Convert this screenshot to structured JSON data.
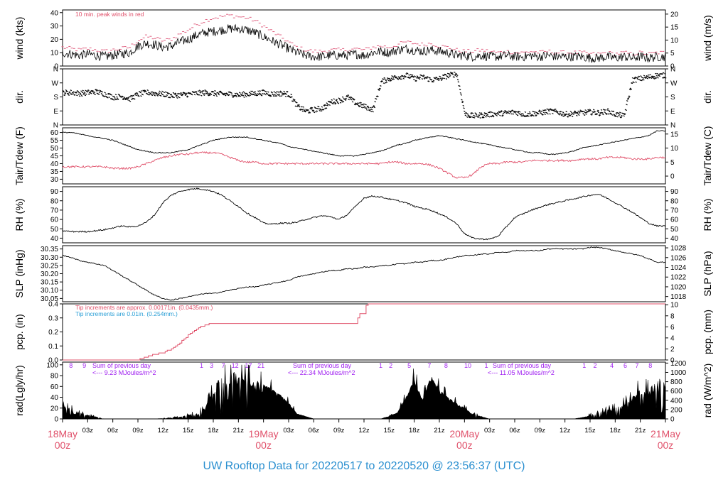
{
  "footer_title": "UW Rooftop Data for 20220517  to  20220520 @ 23:56:37  (UTC)",
  "colors": {
    "black": "#000000",
    "red": "#e0506a",
    "blue": "#2a9fd6",
    "purple": "#a020f0",
    "pink": "#e06080"
  },
  "x_axis": {
    "hour_ticks": [
      "03z",
      "06z",
      "09z",
      "12z",
      "15z",
      "18z",
      "21z",
      "03z",
      "06z",
      "09z",
      "12z",
      "15z",
      "18z",
      "21z",
      "03z",
      "06z",
      "09z",
      "12z",
      "15z",
      "18z",
      "21z"
    ],
    "day_labels": [
      {
        "day": "18May",
        "hour": "00z"
      },
      {
        "day": "19May",
        "hour": "00z"
      },
      {
        "day": "20May",
        "hour": "00z"
      },
      {
        "day": "21May",
        "hour": "00z"
      }
    ]
  },
  "chart_data": [
    {
      "type": "line",
      "panel": "wind",
      "ylabel": "wind (kts)",
      "ylabel_right": "wind (m/s)",
      "ylim": [
        0,
        42
      ],
      "yticks": [
        0,
        10,
        20,
        30,
        40
      ],
      "yticks_right": [
        0,
        5,
        10,
        15,
        20
      ],
      "annotation": "10 min. peak winds in red",
      "series": [
        {
          "values_hourly": [
            10,
            9,
            8,
            9,
            8,
            7,
            8,
            9,
            10,
            15,
            17,
            16,
            14,
            15,
            18,
            20,
            23,
            25,
            26,
            27,
            28,
            28,
            27,
            25,
            22,
            19,
            16,
            13,
            10,
            8,
            7,
            7,
            8,
            8,
            8,
            9,
            8,
            10,
            11,
            10,
            12,
            13,
            12,
            11,
            12,
            11,
            10,
            8,
            8,
            7,
            8,
            7,
            7,
            8,
            7,
            7,
            8,
            7,
            8,
            7,
            7,
            7,
            7,
            6,
            6,
            7,
            6,
            7,
            6,
            7,
            6,
            7
          ]
        },
        {
          "values_hourly": [
            14,
            13,
            12,
            13,
            12,
            11,
            12,
            13,
            14,
            19,
            22,
            21,
            19,
            20,
            24,
            27,
            31,
            34,
            36,
            37,
            38,
            37,
            36,
            34,
            30,
            26,
            22,
            18,
            14,
            12,
            11,
            11,
            12,
            12,
            12,
            13,
            12,
            14,
            15,
            14,
            16,
            18,
            17,
            16,
            17,
            15,
            14,
            12,
            11,
            11,
            12,
            11,
            10,
            11,
            10,
            10,
            11,
            10,
            11,
            10,
            10,
            10,
            10,
            9,
            9,
            10,
            9,
            10,
            9,
            10,
            9,
            10
          ]
        }
      ]
    },
    {
      "type": "scatter",
      "panel": "dir",
      "ylabel": "dir.",
      "ylabel_right": "dir.",
      "ytick_labels": [
        "N",
        "E",
        "S",
        "W",
        "N"
      ],
      "y_degrees_hourly": [
        210,
        210,
        205,
        210,
        215,
        200,
        180,
        185,
        170,
        200,
        210,
        205,
        200,
        190,
        195,
        200,
        205,
        210,
        205,
        200,
        200,
        195,
        200,
        205,
        210,
        200,
        205,
        200,
        120,
        90,
        100,
        110,
        150,
        160,
        180,
        140,
        120,
        100,
        280,
        300,
        310,
        320,
        300,
        310,
        290,
        300,
        320,
        330,
        70,
        60,
        65,
        70,
        75,
        80,
        85,
        70,
        75,
        80,
        90,
        85,
        70,
        75,
        80,
        85,
        80,
        90,
        70,
        60,
        290,
        300,
        310,
        320
      ]
    },
    {
      "type": "line",
      "panel": "temp",
      "ylabel": "Tair/Tdew (F)",
      "ylabel_right": "Tair/Tdew (C)",
      "ylim": [
        27,
        63
      ],
      "yticks": [
        30,
        35,
        40,
        45,
        50,
        55,
        60
      ],
      "yticks_right": [
        0,
        5,
        10,
        15
      ],
      "series": [
        {
          "name": "",
          "values_hourly": [
            60,
            60,
            59,
            58,
            57,
            56,
            55,
            53,
            51,
            49,
            48,
            47,
            47,
            47,
            48,
            49,
            51,
            53,
            55,
            56,
            57,
            57,
            57,
            56,
            55,
            54,
            53,
            51,
            50,
            49,
            48,
            47,
            46,
            45,
            45,
            45,
            46,
            47,
            48,
            50,
            52,
            53,
            55,
            56,
            57,
            58,
            57,
            56,
            55,
            54,
            53,
            52,
            51,
            50,
            49,
            48,
            47,
            47,
            46,
            46,
            47,
            48,
            50,
            51,
            52,
            53,
            54,
            55,
            56,
            57,
            58,
            61
          ]
        },
        {
          "name": "",
          "values_hourly": [
            38,
            38,
            38,
            38,
            38,
            38,
            37,
            37,
            37,
            38,
            40,
            42,
            44,
            45,
            46,
            46,
            47,
            47,
            47,
            46,
            44,
            42,
            41,
            41,
            40,
            40,
            40,
            40,
            40,
            40,
            40,
            40,
            40,
            40,
            40,
            40,
            40,
            40,
            40,
            41,
            41,
            40,
            40,
            40,
            39,
            37,
            34,
            31,
            31,
            33,
            38,
            40,
            40,
            41,
            41,
            41,
            42,
            42,
            42,
            42,
            42,
            42,
            43,
            43,
            43,
            44,
            44,
            44,
            43,
            43,
            43,
            44
          ]
        }
      ]
    },
    {
      "type": "line",
      "panel": "rh",
      "ylabel": "RH (%)",
      "ylabel_right": "RH (%)",
      "ylim": [
        35,
        95
      ],
      "yticks": [
        40,
        50,
        60,
        70,
        80,
        90
      ],
      "yticks_right": [
        40,
        50,
        60,
        70,
        80,
        90
      ],
      "values_hourly": [
        48,
        47,
        47,
        47,
        48,
        49,
        51,
        53,
        52,
        53,
        57,
        65,
        78,
        86,
        90,
        92,
        93,
        92,
        90,
        86,
        80,
        74,
        67,
        62,
        56,
        55,
        56,
        56,
        57,
        60,
        62,
        64,
        63,
        60,
        65,
        74,
        83,
        85,
        84,
        82,
        80,
        78,
        74,
        72,
        70,
        66,
        62,
        56,
        45,
        40,
        39,
        39,
        42,
        52,
        62,
        66,
        70,
        73,
        76,
        78,
        80,
        82,
        84,
        86,
        87,
        83,
        78,
        73,
        68,
        62,
        56,
        53
      ]
    },
    {
      "type": "line",
      "panel": "slp",
      "ylabel": "SLP (inHg)",
      "ylabel_right": "SLP (hPa)",
      "ylim": [
        30.03,
        30.37
      ],
      "yticks": [
        30.05,
        30.1,
        30.15,
        30.2,
        30.25,
        30.3,
        30.35
      ],
      "yticks_right": [
        1018,
        1020,
        1022,
        1024,
        1026,
        1028
      ],
      "values_hourly": [
        30.31,
        30.3,
        30.28,
        30.27,
        30.26,
        30.25,
        30.22,
        30.19,
        30.16,
        30.13,
        30.1,
        30.07,
        30.05,
        30.04,
        30.05,
        30.06,
        30.07,
        30.08,
        30.08,
        30.09,
        30.1,
        30.11,
        30.12,
        30.12,
        30.13,
        30.14,
        30.15,
        30.16,
        30.18,
        30.19,
        30.2,
        30.21,
        30.22,
        30.22,
        30.23,
        30.23,
        30.24,
        30.24,
        30.25,
        30.25,
        30.26,
        30.26,
        30.27,
        30.27,
        30.28,
        30.28,
        30.29,
        30.3,
        30.31,
        30.31,
        30.32,
        30.32,
        30.33,
        30.33,
        30.34,
        30.34,
        30.34,
        30.34,
        30.35,
        30.35,
        30.35,
        30.35,
        30.35,
        30.36,
        30.36,
        30.35,
        30.34,
        30.33,
        30.32,
        30.31,
        30.29,
        30.27
      ]
    },
    {
      "type": "line",
      "panel": "pcp",
      "ylabel": "pcp. (in)",
      "ylabel_right": "pcp. (mm)",
      "ylim": [
        0,
        0.4
      ],
      "yticks": [
        0.0,
        0.1,
        0.2,
        0.3,
        0.4
      ],
      "yticks_right": [
        0,
        2,
        4,
        6,
        8,
        10
      ],
      "annotations": [
        "Tip increments are approx. 0.00171in. (0.0435mm.)",
        "Tip increments are 0.01in. (0.254mm.)"
      ],
      "values_hourly": [
        0,
        0,
        0,
        0,
        0,
        0,
        0,
        0,
        0,
        0,
        0.02,
        0.04,
        0.05,
        0.08,
        0.12,
        0.18,
        0.22,
        0.25,
        0.26,
        0.26,
        0.26,
        0.26,
        0.26,
        0.26,
        0.26,
        0.26,
        0.26,
        0.26,
        0.26,
        0.26,
        0.26,
        0.26,
        0.26,
        0.26,
        0.26,
        0.26,
        0.4,
        0.4,
        0.4,
        0.4,
        0.4,
        0.4,
        0.4,
        0.4,
        0.4,
        0.4,
        0.4,
        0.4,
        0.4,
        0.4,
        0.4,
        0.4,
        0.4,
        0.4,
        0.4,
        0.4,
        0.4,
        0.4,
        0.4,
        0.4,
        0.4,
        0.4,
        0.4,
        0.4,
        0.4,
        0.4,
        0.4,
        0.4,
        0.4,
        0.4,
        0.4,
        0.4
      ]
    },
    {
      "type": "area",
      "panel": "rad",
      "ylabel": "rad(Lgly/hr)",
      "ylabel_right": "rad (W/m^2)",
      "ylim": [
        0,
        105
      ],
      "yticks": [
        0,
        20,
        40,
        60,
        80,
        100
      ],
      "yticks_right": [
        0,
        200,
        400,
        600,
        800,
        1000,
        1200
      ],
      "day_sums": [
        "Sum of previous day",
        "<--- 9.23 MJoules/m^2",
        "Sum of previous day",
        "<--- 22.34 MJoules/m^2",
        "Sum of previous day",
        "<--- 11.05 MJoules/m^2"
      ],
      "hour_markers": [
        {
          "x_hour": 1.0,
          "label": "8"
        },
        {
          "x_hour": 2.6,
          "label": "9"
        },
        {
          "x_hour": 16.6,
          "label": "1"
        },
        {
          "x_hour": 17.8,
          "label": "3"
        },
        {
          "x_hour": 19.2,
          "label": "7"
        },
        {
          "x_hour": 20.6,
          "label": "12"
        },
        {
          "x_hour": 22.2,
          "label": "17"
        },
        {
          "x_hour": 23.7,
          "label": "21"
        },
        {
          "x_hour": 38.0,
          "label": "1"
        },
        {
          "x_hour": 39.2,
          "label": "2"
        },
        {
          "x_hour": 41.4,
          "label": "5"
        },
        {
          "x_hour": 43.8,
          "label": "7"
        },
        {
          "x_hour": 45.8,
          "label": "8"
        },
        {
          "x_hour": 48.4,
          "label": "10"
        },
        {
          "x_hour": 50.6,
          "label": "1"
        },
        {
          "x_hour": 62.3,
          "label": "1"
        },
        {
          "x_hour": 63.6,
          "label": "2"
        },
        {
          "x_hour": 65.6,
          "label": "4"
        },
        {
          "x_hour": 67.2,
          "label": "6"
        },
        {
          "x_hour": 68.6,
          "label": "7"
        },
        {
          "x_hour": 70.2,
          "label": "8"
        }
      ],
      "values_hourly": [
        25,
        20,
        12,
        8,
        4,
        0,
        0,
        0,
        0,
        0,
        0,
        0,
        1,
        3,
        4,
        8,
        12,
        20,
        55,
        85,
        88,
        85,
        78,
        72,
        65,
        55,
        45,
        30,
        10,
        5,
        0,
        0,
        0,
        0,
        0,
        0,
        0,
        0,
        0,
        5,
        12,
        40,
        75,
        35,
        80,
        55,
        40,
        30,
        20,
        10,
        5,
        0,
        0,
        0,
        0,
        0,
        0,
        0,
        0,
        0,
        0,
        0,
        3,
        8,
        12,
        18,
        22,
        30,
        40,
        60,
        55,
        75
      ]
    }
  ]
}
